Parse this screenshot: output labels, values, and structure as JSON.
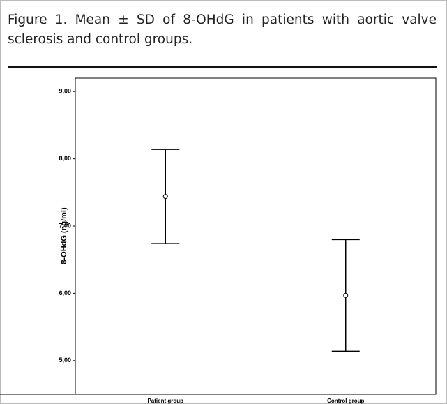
{
  "chart_data": {
    "type": "errorbar",
    "title": "Figure 1. Mean ± SD of 8-OHdG in patients with aortic valve sclerosis and control groups.",
    "y_label": "8-OHdG (ng/ml)",
    "categories": [
      "Patient group",
      "Control group"
    ],
    "values": [
      7.44,
      5.97
    ],
    "errors": [
      0.7,
      0.83
    ],
    "color": "#000000",
    "ylim": [
      4.5,
      9.2
    ],
    "yticks": [
      {
        "value": 5,
        "label": "5,00"
      },
      {
        "value": 6,
        "label": "6,00"
      },
      {
        "value": 7,
        "label": "7,00"
      },
      {
        "value": 8,
        "label": "8,00"
      },
      {
        "value": 9,
        "label": "9,00"
      }
    ]
  }
}
